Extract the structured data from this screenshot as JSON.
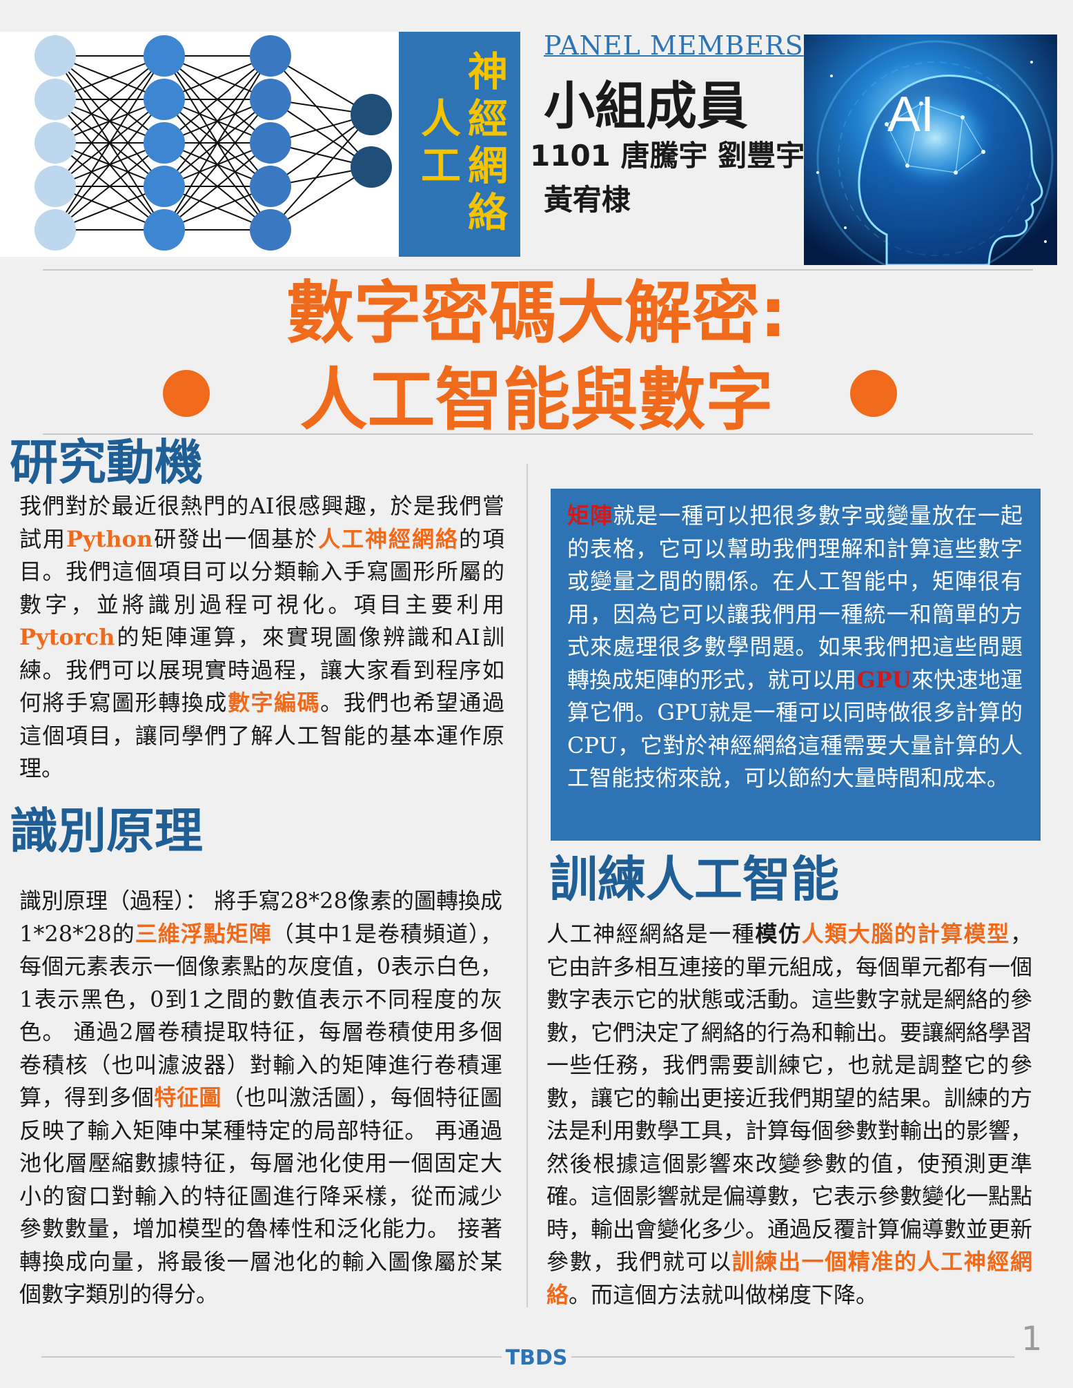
{
  "header": {
    "nn_title": {
      "left_column": "人工",
      "right_column": "神經網絡"
    },
    "panel_label_en": "PANEL MEMBERS",
    "panel_label_zh": "小組成員",
    "members_line1": "1101 唐騰宇  劉豐宇",
    "members_line2": "黃宥棣",
    "ai_image_text": "AI"
  },
  "title": {
    "line1": "數字密碼大解密:",
    "line2": "人工智能與數字"
  },
  "sections": {
    "motivation": {
      "heading": "研究動機",
      "segments": [
        {
          "text": "我們對於最近很熱門的AI很感興趣，於是我們嘗試用",
          "style": "normal"
        },
        {
          "text": "Python",
          "style": "orange"
        },
        {
          "text": "研發出一個基於",
          "style": "normal"
        },
        {
          "text": "人工神經網絡",
          "style": "orange"
        },
        {
          "text": "的項目。我們這個項目可以分類輸入手寫圖形所屬的數字，並將識別過程可視化。項目主要利用",
          "style": "normal"
        },
        {
          "text": "Pytorch",
          "style": "orange"
        },
        {
          "text": "的矩陣運算，來實現圖像辨識和AI訓練。我們可以展現實時過程，讓大家看到程序如何將手寫圖形轉換成",
          "style": "normal"
        },
        {
          "text": "數字編碼",
          "style": "orange"
        },
        {
          "text": "。我們也希望通過這個項目，讓同學們了解人工智能的基本運作原理。",
          "style": "normal"
        }
      ]
    },
    "principle": {
      "heading": "識別原理",
      "segments": [
        {
          "text": "識別原理（過程）： 將手寫28*28像素的圖轉換成1*28*28的",
          "style": "normal"
        },
        {
          "text": "三維浮點矩陣",
          "style": "orange"
        },
        {
          "text": "（其中1是卷積頻道），每個元素表示一個像素點的灰度值，0表示白色，1表示黑色，0到1之間的數值表示不同程度的灰色。 通過2層卷積提取特征，每層卷積使用多個卷積核（也叫濾波器）對輸入的矩陣進行卷積運算，得到多個",
          "style": "normal"
        },
        {
          "text": "特征圖",
          "style": "orange"
        },
        {
          "text": "（也叫激活圖），每個特征圖反映了輸入矩陣中某種特定的局部特征。 再通過池化層壓縮數據特征，每層池化使用一個固定大小的窗口對輸入的特征圖進行降采樣，從而減少參數數量，增加模型的魯棒性和泛化能力。 接著轉換成向量，將最後一層池化的輸入圖像屬於某個數字類別的得分。",
          "style": "normal"
        }
      ]
    },
    "matrix_box": {
      "segments": [
        {
          "text": "矩陣",
          "style": "red"
        },
        {
          "text": "就是一種可以把很多數字或變量放在一起的表格，它可以幫助我們理解和計算這些數字或變量之間的關係。在人工智能中，矩陣很有用，因為它可以讓我們用一種統一和簡單的方式來處理很多數學問題。如果我們把這些問題轉換成矩陣的形式，就可以用",
          "style": "normal"
        },
        {
          "text": "GPU",
          "style": "red"
        },
        {
          "text": "來快速地運算它們。GPU就是一種可以同時做很多計算的CPU，它對於神經網絡這種需要大量計算的人工智能技術來說，可以節約大量時間和成本。",
          "style": "normal"
        }
      ]
    },
    "training": {
      "heading": "訓練人工智能",
      "segments": [
        {
          "text": "人工神經網絡是一種",
          "style": "normal"
        },
        {
          "text": "模仿",
          "style": "bold"
        },
        {
          "text": "人類大腦的計算模型",
          "style": "orange"
        },
        {
          "text": "，它由許多相互連接的單元組成，每個單元都有一個數字表示它的狀態或活動。這些數字就是網絡的參數，它們決定了網絡的行為和輸出。要讓網絡學習一些任務，我們需要訓練它，也就是調整它的參數，讓它的輸出更接近我們期望的結果。訓練的方法是利用數學工具，計算每個參數對輸出的影響，然後根據這個影響來改變參數的值，使預測更準確。這個影響就是偏導數，它表示參數變化一點點時，輸出會變化多少。通過反覆計算偏導數並更新參數，我們就可以",
          "style": "normal"
        },
        {
          "text": "訓練出一個精准的人工神經網絡",
          "style": "orange"
        },
        {
          "text": "。而這個方法就叫做梯度下降。",
          "style": "normal"
        }
      ]
    }
  },
  "footer": {
    "label": "TBDS",
    "page_number": "1"
  },
  "colors": {
    "accent_orange": "#f06a1c",
    "heading_blue": "#1f5f95",
    "box_blue": "#2e74b5",
    "title_yellow": "#f5c400",
    "highlight_red": "#d11a1a"
  }
}
